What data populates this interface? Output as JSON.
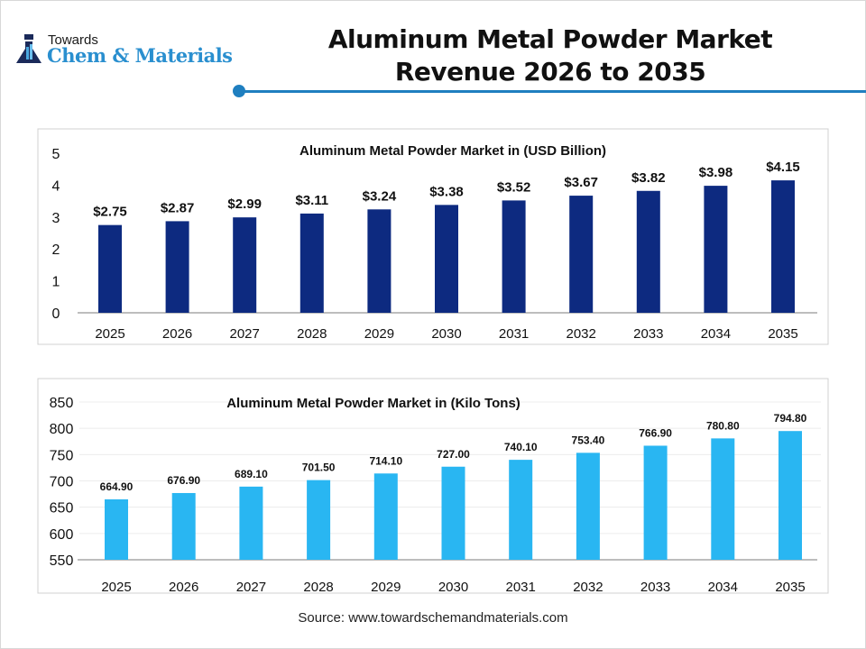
{
  "logo": {
    "line1": "Towards",
    "line2": "Chem & Materials"
  },
  "header": {
    "title_line1": "Aluminum Metal Powder Market",
    "title_line2": "Revenue 2026 to 2035"
  },
  "source": "Source: www.towardschemandmaterials.com",
  "chart_data": [
    {
      "type": "bar",
      "title": "Aluminum Metal Powder Market in (USD Billion)",
      "categories": [
        "2025",
        "2026",
        "2027",
        "2028",
        "2029",
        "2030",
        "2031",
        "2032",
        "2033",
        "2034",
        "2035"
      ],
      "values": [
        2.75,
        2.87,
        2.99,
        3.11,
        3.24,
        3.38,
        3.52,
        3.67,
        3.82,
        3.98,
        4.15
      ],
      "data_labels": [
        "$2.75",
        "$2.87",
        "$2.99",
        "$3.11",
        "$3.24",
        "$3.38",
        "$3.52",
        "$3.67",
        "$3.82",
        "$3.98",
        "$4.15"
      ],
      "yticks": [
        "0",
        "1",
        "2",
        "3",
        "4",
        "5"
      ],
      "ylim": [
        0,
        5
      ],
      "grid": false,
      "color": "#0d2a80"
    },
    {
      "type": "bar",
      "title": "Aluminum Metal Powder Market in (Kilo Tons)",
      "categories": [
        "2025",
        "2026",
        "2027",
        "2028",
        "2029",
        "2030",
        "2031",
        "2032",
        "2033",
        "2034",
        "2035"
      ],
      "values": [
        664.9,
        676.9,
        689.1,
        701.5,
        714.1,
        727.0,
        740.1,
        753.4,
        766.9,
        780.8,
        794.8
      ],
      "data_labels": [
        "664.90",
        "676.90",
        "689.10",
        "701.50",
        "714.10",
        "727.00",
        "740.10",
        "753.40",
        "766.90",
        "780.80",
        "794.80"
      ],
      "yticks": [
        "550",
        "600",
        "650",
        "700",
        "750",
        "800",
        "850"
      ],
      "ylim": [
        550,
        850
      ],
      "grid": true,
      "color": "#29b6f2"
    }
  ]
}
